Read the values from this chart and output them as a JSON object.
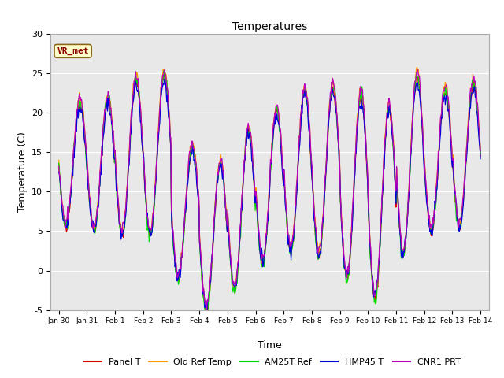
{
  "title": "Temperatures",
  "xlabel": "Time",
  "ylabel": "Temperature (C)",
  "ylim": [
    -5,
    30
  ],
  "annotation_text": "VR_met",
  "plot_bg_color": "#e8e8e8",
  "grid_color": "white",
  "series_colors": {
    "Panel T": "#dd0000",
    "Old Ref Temp": "#ff9900",
    "AM25T Ref": "#00dd00",
    "HMP45 T": "#0000dd",
    "CNR1 PRT": "#bb00bb"
  },
  "xtick_labels": [
    "Jan 30",
    "Jan 31",
    "Feb 1",
    "Feb 2",
    "Feb 3",
    "Feb 4",
    "Feb 5",
    "Feb 6",
    "Feb 7",
    "Feb 8",
    "Feb 9",
    "Feb 10",
    "Feb 11",
    "Feb 12",
    "Feb 13",
    "Feb 14"
  ],
  "ytick_values": [
    -5,
    0,
    5,
    10,
    15,
    20,
    25,
    30
  ],
  "n_days": 15,
  "samples_per_day": 48,
  "day_params": [
    {
      "dmin": 5.5,
      "dmax": 21.0
    },
    {
      "dmin": 5.0,
      "dmax": 21.5
    },
    {
      "dmin": 4.5,
      "dmax": 24.0
    },
    {
      "dmin": 4.5,
      "dmax": 24.5
    },
    {
      "dmin": -1.0,
      "dmax": 15.5
    },
    {
      "dmin": -5.0,
      "dmax": 13.5
    },
    {
      "dmin": -2.5,
      "dmax": 17.5
    },
    {
      "dmin": 1.0,
      "dmax": 20.0
    },
    {
      "dmin": 2.5,
      "dmax": 22.5
    },
    {
      "dmin": 2.0,
      "dmax": 23.0
    },
    {
      "dmin": -1.0,
      "dmax": 22.0
    },
    {
      "dmin": -3.5,
      "dmax": 20.5
    },
    {
      "dmin": 2.0,
      "dmax": 24.5
    },
    {
      "dmin": 5.0,
      "dmax": 22.5
    },
    {
      "dmin": 5.5,
      "dmax": 23.5
    }
  ]
}
